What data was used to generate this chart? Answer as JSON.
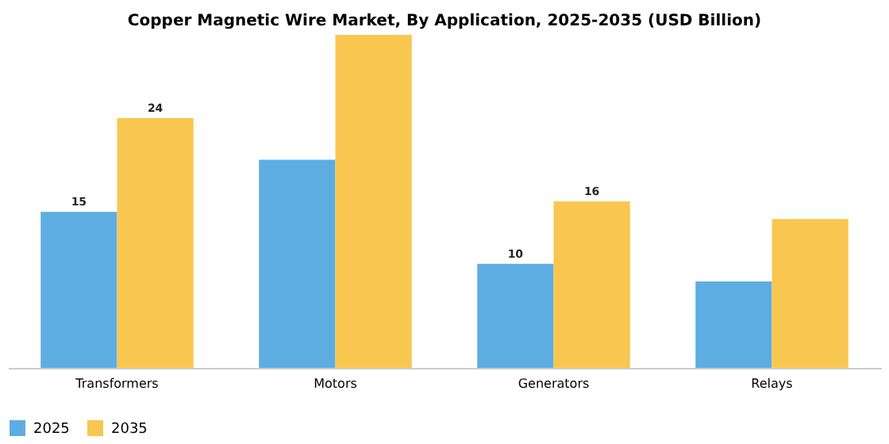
{
  "chart_data": {
    "type": "bar",
    "title": "Copper Magnetic Wire Market, By Application, 2025-2035 (USD Billion)",
    "categories": [
      "Transformers",
      "Motors",
      "Generators",
      "Relays"
    ],
    "series": [
      {
        "name": "2025",
        "color": "#5dade2",
        "values": [
          15,
          20,
          10,
          8.3
        ],
        "value_labels": [
          "15",
          null,
          "10",
          null
        ]
      },
      {
        "name": "2035",
        "color": "#f9c74f",
        "values": [
          24,
          32,
          16,
          14.3
        ],
        "value_labels": [
          "24",
          null,
          "16",
          null
        ]
      }
    ],
    "tick_labels": "x",
    "grid": false,
    "legend": "bottom"
  }
}
